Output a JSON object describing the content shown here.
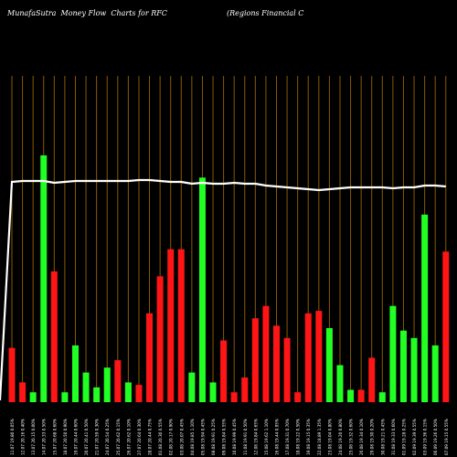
{
  "chart_data": {
    "type": "bar",
    "title": "MunafaSutra  Money Flow  Charts for RFC",
    "subtitle": "(Regions Financial C",
    "categories": [
      "11.07 19.80 0.05%",
      "12.07 20.16 0.40%",
      "13.07 20.15 0.00%",
      "14.07 20.33 0.50%",
      "15.07 20.68 0.60%",
      "18.07 20.50 0.90%",
      "19.07 20.44 0.60%",
      "20.07 20.41 0.50%",
      "21.07 20.59 0.30%",
      "24.07 20.54 0.25%",
      "25.07 20.62 0.15%",
      "26.07 20.62 0.10%",
      "27.07 20.64 0.30%",
      "28.07 20.44 0.75%",
      "01.08 20.30 0.55%",
      "02.08 20.17 0.90%",
      "03.08 20.07 0.45%",
      "04.08 19.85 1.10%",
      "05.08 19.94 0.45%",
      "08.08 19.91 0.25%",
      "09.08 19.84 0.55%",
      "10.08 19.99 0.45%",
      "11.08 19.91 0.50%",
      "12.08 19.84 0.65%",
      "15.08 19.62 1.10%",
      "16.08 19.44 0.95%",
      "17.08 19.31 0.70%",
      "18.08 19.22 0.50%",
      "19.08 19.15 0.35%",
      "22.08 18.89 1.35%",
      "23.08 19.04 0.80%",
      "24.08 19.20 0.80%",
      "25.08 19.32 0.60%",
      "26.08 19.34 0.10%",
      "29.08 19.30 0.20%",
      "30.08 19.21 0.45%",
      "31.08 19.33 0.60%",
      "01.09 19.28 0.25%",
      "02.09 19.39 0.55%",
      "03.09 19.36 0.15%",
      "06.09 19.26 0.50%",
      "07.09 19.15 0.55%"
    ],
    "series": [
      {
        "values": [
          22,
          8,
          4,
          100,
          53,
          4,
          23,
          12,
          6,
          14,
          17,
          8,
          7,
          36,
          51,
          62,
          62,
          12,
          91,
          8,
          25,
          4,
          10,
          34,
          39,
          31,
          26,
          4,
          36,
          37,
          30,
          15,
          5,
          5,
          18,
          4,
          39,
          29,
          26,
          76,
          23,
          61
        ],
        "colors": [
          "red",
          "red",
          "green",
          "green",
          "red",
          "green",
          "green",
          "green",
          "green",
          "green",
          "red",
          "green",
          "red",
          "red",
          "red",
          "red",
          "red",
          "green",
          "green",
          "green",
          "red",
          "red",
          "red",
          "red",
          "red",
          "red",
          "red",
          "red",
          "red",
          "red",
          "green",
          "green",
          "green",
          "red",
          "red",
          "green",
          "green",
          "green",
          "green",
          "green",
          "green",
          "red"
        ]
      }
    ],
    "price_line": [
      81,
      82,
      82,
      82,
      80,
      81,
      82,
      82,
      82,
      82,
      82,
      82,
      83,
      83,
      82,
      81,
      81,
      79,
      80,
      79,
      79,
      80,
      79,
      79,
      77,
      76,
      75,
      74,
      73,
      72,
      73,
      74,
      75,
      75,
      75,
      75,
      74,
      75,
      75,
      77,
      77,
      76
    ],
    "ylim": [
      0,
      100
    ],
    "colors": {
      "background": "#000000",
      "gridline": "#8b5a00",
      "up_bar": "#22ff22",
      "down_bar": "#ff1515",
      "price_line": "#ffffff",
      "tick_text": "#ffffff"
    }
  }
}
